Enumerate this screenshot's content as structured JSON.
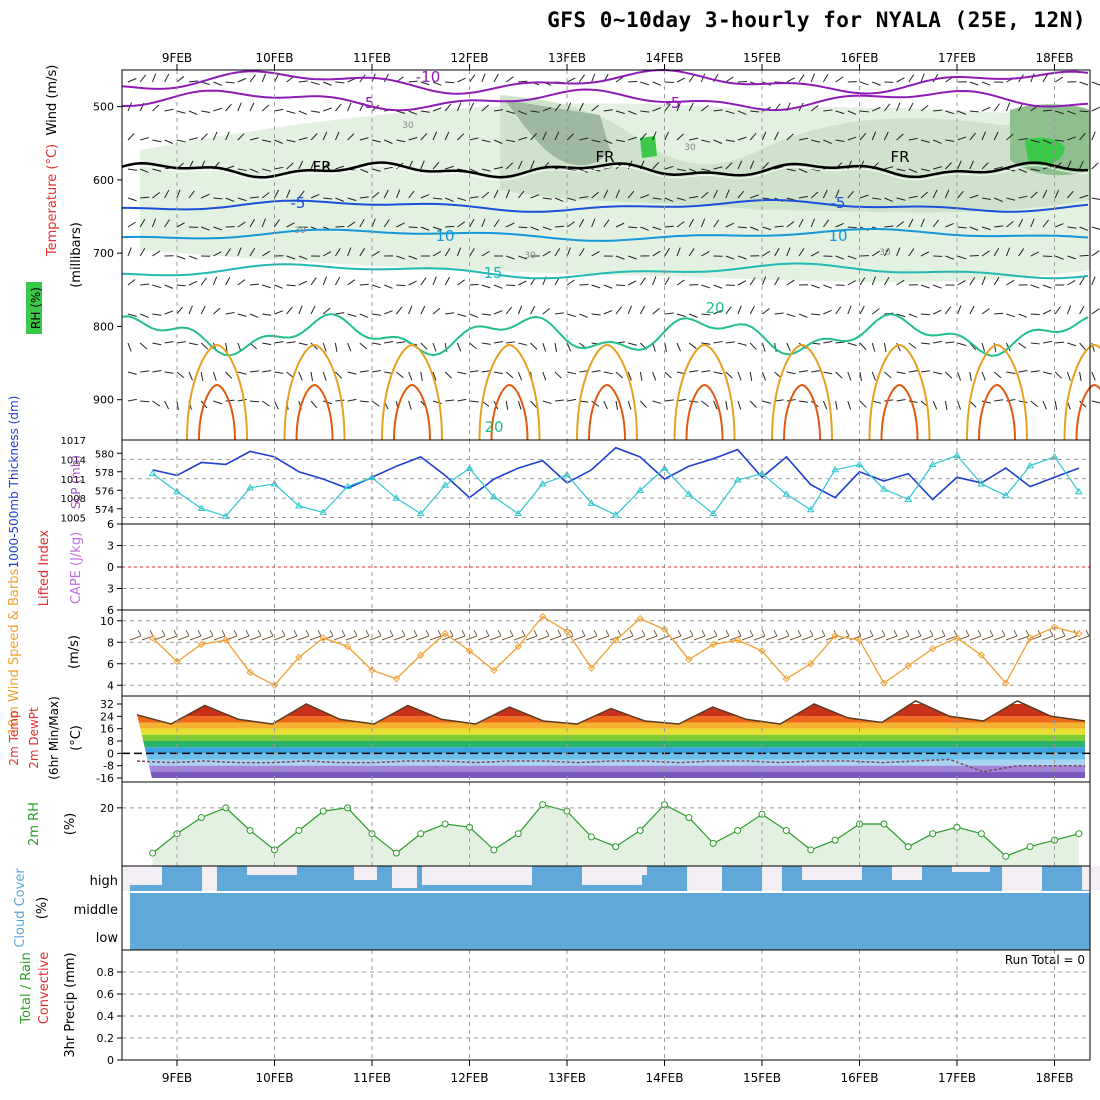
{
  "title": "GFS 0~10day 3-hourly for NYALA (25E, 12N)",
  "dates": [
    "9FEB",
    "10FEB",
    "11FEB",
    "12FEB",
    "13FEB",
    "14FEB",
    "15FEB",
    "16FEB",
    "17FEB",
    "18FEB"
  ],
  "colors": {
    "purple": "#8e1bb5",
    "blue": "#1a4fd8",
    "cyan": "#1597d8",
    "teal": "#22b8b4",
    "green_contour": "#22c08a",
    "orange": "#e8a020",
    "dark_orange": "#e05a10",
    "thickness": "#1d3fd0",
    "slp": "#2fc6d0",
    "wind": "#f0a030",
    "rh": "#2a9a2a",
    "cloud": "#5fa8d8",
    "lifted": "#e03030"
  },
  "panels": {
    "upper": {
      "labels": [
        "Wind (m/s)",
        "Temperature (°C)",
        "RH (%)",
        "(millibars)"
      ],
      "pressure_ticks": [
        500,
        600,
        700,
        800,
        900
      ],
      "contour_labels": [
        "-10",
        "-5",
        "-5",
        "FR",
        "FR",
        "FR",
        "-5",
        "-5",
        "10",
        "10",
        "15",
        "20",
        "20",
        "30",
        "30",
        "30",
        "30",
        "30"
      ]
    },
    "thickness": {
      "label_left": "1000-500mb Thickness (dm)",
      "label_right": "SLP (mb)",
      "left_ticks": [
        580,
        578,
        576,
        574
      ],
      "right_ticks": [
        1017,
        1014,
        1011,
        1008,
        1005
      ]
    },
    "cape": {
      "label_left": "Lifted Index",
      "label_right": "CAPE (J/kg)",
      "ticks": [
        -6,
        -3,
        0,
        3,
        6
      ],
      "tick_labels": [
        "6",
        "3",
        "0",
        "3",
        "6"
      ]
    },
    "wind10m": {
      "label_left": "10m Wind Speed & Barbs",
      "label_unit": "(m/s)",
      "ticks": [
        4,
        6,
        8,
        10
      ]
    },
    "temp2m": {
      "label_left": "2m Temp 2m DewPt (6hr Min/Max)",
      "label_unit": "(°C)",
      "ticks": [
        32,
        24,
        16,
        8,
        0,
        -8,
        -16
      ],
      "tick_labels": [
        "32",
        "24",
        "16",
        "8",
        "0",
        "-8",
        "-16"
      ]
    },
    "rh2m": {
      "label_left": "2m RH",
      "label_unit": "(%)",
      "ticks": [
        20
      ]
    },
    "cloud": {
      "label_left": "Cloud Cover",
      "label_unit": "(%)",
      "levels": [
        "high",
        "middle",
        "low"
      ]
    },
    "precip": {
      "label_left": "Total / Rain",
      "label_left2": "Convective",
      "label_unit": "3hr Precip (mm)",
      "ticks": [
        0,
        0.2,
        0.4,
        0.6,
        0.8
      ],
      "tick_labels": [
        "0",
        "0.2",
        "0.4",
        "0.6",
        "0.8"
      ],
      "run_total": "Run Total = 0"
    }
  },
  "chart_data": [
    {
      "type": "line",
      "title": "1000-500mb Thickness (dm) / SLP (mb)",
      "x": [
        "8FEB 18",
        "9FEB 00",
        "9FEB 06",
        "9FEB 12",
        "9FEB 18",
        "10FEB 00",
        "10FEB 06",
        "10FEB 12",
        "10FEB 18",
        "11FEB 00",
        "11FEB 06",
        "11FEB 12",
        "11FEB 18",
        "12FEB 00",
        "12FEB 06",
        "12FEB 12",
        "12FEB 18",
        "13FEB 00",
        "13FEB 06",
        "13FEB 12",
        "13FEB 18",
        "14FEB 00",
        "14FEB 06",
        "14FEB 12",
        "14FEB 18",
        "15FEB 00",
        "15FEB 06",
        "15FEB 12",
        "15FEB 18",
        "16FEB 00",
        "16FEB 06",
        "16FEB 12",
        "16FEB 18",
        "17FEB 00",
        "17FEB 06",
        "17FEB 12",
        "17FEB 18",
        "18FEB 00",
        "18FEB 06"
      ],
      "series": [
        {
          "name": "1000-500mb Thickness (dm)",
          "values": [
            578.2,
            577.6,
            579.0,
            578.8,
            580.2,
            579.6,
            578.0,
            577.2,
            576.2,
            577.4,
            578.6,
            579.6,
            577.6,
            575.2,
            577.2,
            578.4,
            579.2,
            576.8,
            578.2,
            580.6,
            579.6,
            577.2,
            578.6,
            579.4,
            580.4,
            577.4,
            579.6,
            576.6,
            575.2,
            578.0,
            577.0,
            577.8,
            575.0,
            577.4,
            576.8,
            578.4,
            576.4,
            577.4,
            578.4
          ]
        },
        {
          "name": "SLP (mb)",
          "values": [
            1011.8,
            1009.0,
            1006.4,
            1005.2,
            1009.6,
            1010.2,
            1006.8,
            1005.8,
            1009.8,
            1011.2,
            1008.0,
            1005.6,
            1010.0,
            1012.6,
            1008.2,
            1005.6,
            1010.2,
            1011.6,
            1007.2,
            1005.4,
            1009.2,
            1012.6,
            1008.6,
            1005.6,
            1010.8,
            1011.8,
            1008.6,
            1006.2,
            1012.4,
            1013.2,
            1009.4,
            1007.8,
            1013.2,
            1014.6,
            1010.2,
            1008.4,
            1013.0,
            1014.4,
            1009.0
          ]
        }
      ],
      "ylim_left": [
        573,
        581
      ],
      "ylim_right": [
        1004,
        1017
      ]
    },
    {
      "type": "line",
      "title": "10m Wind Speed",
      "x": [
        "8FEB 18",
        "9FEB 00",
        "9FEB 06",
        "9FEB 12",
        "9FEB 18",
        "10FEB 00",
        "10FEB 06",
        "10FEB 12",
        "10FEB 18",
        "11FEB 00",
        "11FEB 06",
        "11FEB 12",
        "11FEB 18",
        "12FEB 00",
        "12FEB 06",
        "12FEB 12",
        "12FEB 18",
        "13FEB 00",
        "13FEB 06",
        "13FEB 12",
        "13FEB 18",
        "14FEB 00",
        "14FEB 06",
        "14FEB 12",
        "14FEB 18",
        "15FEB 00",
        "15FEB 06",
        "15FEB 12",
        "15FEB 18",
        "16FEB 00",
        "16FEB 06",
        "16FEB 12",
        "16FEB 18",
        "17FEB 00",
        "17FEB 06",
        "17FEB 12",
        "17FEB 18",
        "18FEB 00",
        "18FEB 06"
      ],
      "series": [
        {
          "name": "10m Wind Speed",
          "values": [
            8.4,
            6.2,
            7.8,
            8.2,
            5.2,
            4.0,
            6.6,
            8.4,
            7.6,
            5.4,
            4.6,
            6.8,
            8.8,
            7.2,
            5.4,
            7.6,
            10.4,
            9.0,
            5.6,
            8.2,
            10.2,
            9.2,
            6.4,
            7.8,
            8.2,
            7.2,
            4.6,
            6.0,
            8.6,
            8.2,
            4.2,
            5.8,
            7.4,
            8.4,
            6.8,
            4.2,
            8.4,
            9.4,
            8.8
          ]
        }
      ],
      "ylim": [
        3,
        11
      ]
    },
    {
      "type": "area",
      "title": "2m Temp / 2m DewPt",
      "x": [
        "8FEB 18",
        "9FEB 06",
        "9FEB 12",
        "9FEB 18",
        "10FEB 06",
        "10FEB 12",
        "10FEB 18",
        "11FEB 06",
        "11FEB 12",
        "11FEB 18",
        "12FEB 06",
        "12FEB 12",
        "12FEB 18",
        "13FEB 06",
        "13FEB 12",
        "13FEB 18",
        "14FEB 06",
        "14FEB 12",
        "14FEB 18",
        "15FEB 06",
        "15FEB 12",
        "15FEB 18",
        "16FEB 06",
        "16FEB 12",
        "16FEB 18",
        "17FEB 06",
        "17FEB 12",
        "17FEB 18",
        "18FEB 06"
      ],
      "series": [
        {
          "name": "2m Temp",
          "values": [
            25,
            19,
            31,
            22,
            19,
            32,
            22,
            19,
            31,
            22,
            19,
            30,
            21,
            19,
            29,
            21,
            19,
            30,
            22,
            19,
            32,
            23,
            20,
            34,
            24,
            21,
            34,
            24,
            21
          ]
        },
        {
          "name": "2m DewPt",
          "values": [
            -5,
            -6,
            -5,
            -6,
            -6,
            -5,
            -6,
            -6,
            -5,
            -5,
            -6,
            -5,
            -5,
            -6,
            -5,
            -5,
            -6,
            -5,
            -5,
            -6,
            -5,
            -5,
            -6,
            -5,
            -4,
            -12,
            -8,
            -8,
            -8
          ]
        }
      ],
      "ylim": [
        -18,
        35
      ]
    },
    {
      "type": "line",
      "title": "2m RH",
      "x": [
        "8FEB 18",
        "9FEB 00",
        "9FEB 06",
        "9FEB 12",
        "9FEB 18",
        "10FEB 00",
        "10FEB 06",
        "10FEB 12",
        "10FEB 18",
        "11FEB 00",
        "11FEB 06",
        "11FEB 12",
        "11FEB 18",
        "12FEB 00",
        "12FEB 06",
        "12FEB 12",
        "12FEB 18",
        "13FEB 00",
        "13FEB 06",
        "13FEB 12",
        "13FEB 18",
        "14FEB 00",
        "14FEB 06",
        "14FEB 12",
        "14FEB 18",
        "15FEB 00",
        "15FEB 06",
        "15FEB 12",
        "15FEB 18",
        "16FEB 00",
        "16FEB 06",
        "16FEB 12",
        "16FEB 18",
        "17FEB 00",
        "17FEB 06",
        "17FEB 12",
        "17FEB 18",
        "18FEB 00",
        "18FEB 06"
      ],
      "series": [
        {
          "name": "2m RH",
          "values": [
            6,
            12,
            17,
            20,
            13,
            7,
            13,
            19,
            20,
            12,
            6,
            12,
            15,
            14,
            7,
            12,
            21,
            19,
            11,
            8,
            13,
            21,
            17,
            9,
            13,
            18,
            13,
            7,
            10,
            15,
            15,
            8,
            12,
            14,
            12,
            5,
            8,
            10,
            12
          ]
        }
      ],
      "ylim": [
        2,
        28
      ]
    },
    {
      "type": "bar",
      "title": "3hr Precip (mm)",
      "series": [
        {
          "name": "Total / Rain",
          "values": [
            0
          ]
        },
        {
          "name": "Convective",
          "values": [
            0
          ]
        }
      ],
      "ylim": [
        0,
        1.0
      ]
    }
  ]
}
